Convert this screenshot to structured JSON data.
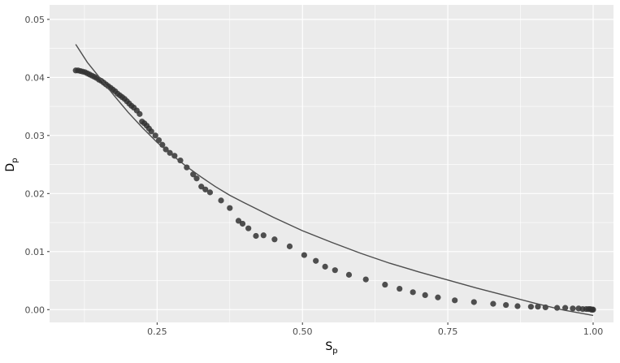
{
  "chart_data": {
    "type": "scatter",
    "title": "",
    "xlabel": {
      "main": "S",
      "sub": "p"
    },
    "ylabel": {
      "main": "D",
      "sub": "p"
    },
    "xlim": [
      0.065,
      1.035
    ],
    "ylim": [
      -0.0022,
      0.0525
    ],
    "x_ticks": [
      0.25,
      0.5,
      0.75,
      1.0
    ],
    "x_tick_labels": [
      "0.25",
      "0.50",
      "0.75",
      "1.00"
    ],
    "y_ticks": [
      0.0,
      0.01,
      0.02,
      0.03,
      0.04,
      0.05
    ],
    "y_tick_labels": [
      "0.00",
      "0.01",
      "0.02",
      "0.03",
      "0.04",
      "0.05"
    ],
    "grid": true,
    "colors": {
      "panel": "#ebebeb",
      "grid": "#ffffff",
      "points": "#333333",
      "curve": "#4d4d4d"
    },
    "points": [
      [
        0.11,
        0.0412
      ],
      [
        0.114,
        0.0412
      ],
      [
        0.118,
        0.0411
      ],
      [
        0.122,
        0.041
      ],
      [
        0.126,
        0.0409
      ],
      [
        0.13,
        0.0407
      ],
      [
        0.134,
        0.0405
      ],
      [
        0.138,
        0.0403
      ],
      [
        0.142,
        0.0401
      ],
      [
        0.146,
        0.0399
      ],
      [
        0.15,
        0.0396
      ],
      [
        0.154,
        0.0394
      ],
      [
        0.158,
        0.0391
      ],
      [
        0.162,
        0.0388
      ],
      [
        0.166,
        0.0385
      ],
      [
        0.17,
        0.0382
      ],
      [
        0.174,
        0.0379
      ],
      [
        0.178,
        0.0376
      ],
      [
        0.182,
        0.0372
      ],
      [
        0.186,
        0.0369
      ],
      [
        0.19,
        0.0366
      ],
      [
        0.194,
        0.0363
      ],
      [
        0.198,
        0.0359
      ],
      [
        0.202,
        0.0355
      ],
      [
        0.206,
        0.0351
      ],
      [
        0.21,
        0.0348
      ],
      [
        0.215,
        0.0343
      ],
      [
        0.22,
        0.0337
      ],
      [
        0.224,
        0.0324
      ],
      [
        0.228,
        0.0321
      ],
      [
        0.232,
        0.0317
      ],
      [
        0.236,
        0.0312
      ],
      [
        0.24,
        0.0307
      ],
      [
        0.247,
        0.03
      ],
      [
        0.253,
        0.0292
      ],
      [
        0.259,
        0.0284
      ],
      [
        0.265,
        0.0276
      ],
      [
        0.272,
        0.027
      ],
      [
        0.28,
        0.0265
      ],
      [
        0.29,
        0.0257
      ],
      [
        0.301,
        0.0245
      ],
      [
        0.312,
        0.0233
      ],
      [
        0.318,
        0.0226
      ],
      [
        0.326,
        0.0212
      ],
      [
        0.333,
        0.0207
      ],
      [
        0.341,
        0.0202
      ],
      [
        0.36,
        0.0188
      ],
      [
        0.375,
        0.0175
      ],
      [
        0.39,
        0.0153
      ],
      [
        0.397,
        0.0148
      ],
      [
        0.407,
        0.014
      ],
      [
        0.42,
        0.0127
      ],
      [
        0.433,
        0.0128
      ],
      [
        0.452,
        0.0121
      ],
      [
        0.478,
        0.0109
      ],
      [
        0.503,
        0.0094
      ],
      [
        0.523,
        0.0084
      ],
      [
        0.539,
        0.0074
      ],
      [
        0.556,
        0.0068
      ],
      [
        0.58,
        0.006
      ],
      [
        0.609,
        0.0052
      ],
      [
        0.642,
        0.0043
      ],
      [
        0.667,
        0.0036
      ],
      [
        0.69,
        0.003
      ],
      [
        0.711,
        0.0025
      ],
      [
        0.733,
        0.0021
      ],
      [
        0.762,
        0.0016
      ],
      [
        0.795,
        0.0013
      ],
      [
        0.828,
        0.001
      ],
      [
        0.85,
        0.0008
      ],
      [
        0.87,
        0.0006
      ],
      [
        0.893,
        0.0005
      ],
      [
        0.905,
        0.0005
      ],
      [
        0.918,
        0.0004
      ],
      [
        0.938,
        0.0003
      ],
      [
        0.952,
        0.0003
      ],
      [
        0.965,
        0.0002
      ],
      [
        0.975,
        0.0002
      ],
      [
        0.982,
        0.0001
      ],
      [
        0.988,
        0.0001
      ],
      [
        0.992,
        0.0001
      ],
      [
        0.995,
        0.0001
      ],
      [
        0.997,
        0.0
      ],
      [
        0.999,
        0.0
      ],
      [
        1.0,
        0.0
      ]
    ],
    "fit_curve": [
      [
        0.11,
        0.0457
      ],
      [
        0.13,
        0.0426
      ],
      [
        0.15,
        0.0401
      ],
      [
        0.175,
        0.037
      ],
      [
        0.2,
        0.034
      ],
      [
        0.225,
        0.0313
      ],
      [
        0.25,
        0.0288
      ],
      [
        0.275,
        0.0267
      ],
      [
        0.3,
        0.0247
      ],
      [
        0.325,
        0.0229
      ],
      [
        0.35,
        0.0212
      ],
      [
        0.375,
        0.0197
      ],
      [
        0.4,
        0.0184
      ],
      [
        0.45,
        0.0159
      ],
      [
        0.5,
        0.0136
      ],
      [
        0.55,
        0.0116
      ],
      [
        0.6,
        0.0097
      ],
      [
        0.65,
        0.008
      ],
      [
        0.7,
        0.0065
      ],
      [
        0.75,
        0.0051
      ],
      [
        0.8,
        0.0037
      ],
      [
        0.85,
        0.0024
      ],
      [
        0.9,
        0.0011
      ],
      [
        0.95,
        -0.0001
      ],
      [
        1.0,
        -0.001
      ]
    ]
  }
}
